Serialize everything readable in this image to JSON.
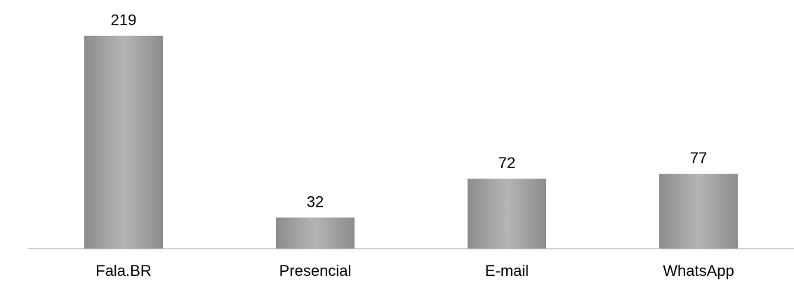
{
  "chart_data": {
    "type": "bar",
    "categories": [
      "Fala.BR",
      "Presencial",
      "E-mail",
      "WhatsApp"
    ],
    "values": [
      219,
      32,
      72,
      77
    ],
    "data_labels": [
      "219",
      "32",
      "72",
      "77"
    ],
    "title": "",
    "xlabel": "",
    "ylabel": "",
    "ylim": [
      0,
      219
    ],
    "grid": false,
    "legend": "none",
    "colors": {
      "bar_light": "#b5b5b5",
      "bar_dark": "#8c8c8c",
      "baseline": "#a6a6a6",
      "text": "#000000"
    }
  }
}
